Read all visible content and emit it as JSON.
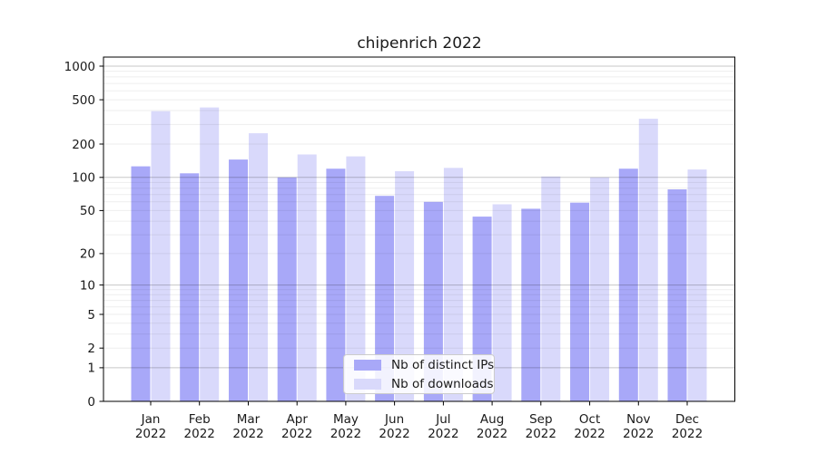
{
  "title": "chipenrich 2022",
  "chart_data": {
    "type": "bar",
    "title": "chipenrich 2022",
    "categories": [
      "Jan",
      "Feb",
      "Mar",
      "Apr",
      "May",
      "Jun",
      "Jul",
      "Aug",
      "Sep",
      "Oct",
      "Nov",
      "Dec"
    ],
    "year": "2022",
    "series": [
      {
        "name": "Nb of distinct IPs",
        "color": "#a8a8f8",
        "values": [
          126,
          109,
          145,
          100,
          120,
          68,
          60,
          44,
          52,
          59,
          120,
          78
        ]
      },
      {
        "name": "Nb of downloads",
        "color": "#d9d9fb",
        "values": [
          395,
          426,
          250,
          161,
          155,
          114,
          122,
          57,
          102,
          100,
          337,
          118
        ]
      }
    ],
    "yscale": "log1p",
    "yticks": [
      0,
      1,
      2,
      5,
      10,
      20,
      50,
      100,
      200,
      500,
      1000
    ],
    "ylim": [
      0,
      1200
    ],
    "xlabel": "",
    "ylabel": "",
    "grid": true,
    "legend_position": "lower center"
  },
  "colors": {
    "spine": "#000000",
    "text": "#1a1a1a",
    "legend_border": "#cccccc"
  }
}
